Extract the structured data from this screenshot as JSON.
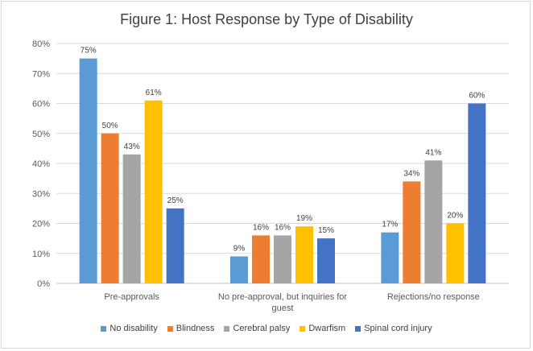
{
  "chart_data": {
    "type": "bar",
    "title": "Figure 1:  Host Response by Type of Disability",
    "categories": [
      [
        "Pre-approvals"
      ],
      [
        "No pre-approval, but inquiries for",
        "guest"
      ],
      [
        "Rejections/no response"
      ]
    ],
    "series": [
      {
        "name": "No disability",
        "color": "#5b9bd5",
        "values": [
          75,
          9,
          17
        ],
        "labels": [
          "75%",
          "9%",
          "17%"
        ]
      },
      {
        "name": "Blindness",
        "color": "#ed7d31",
        "values": [
          50,
          16,
          34
        ],
        "labels": [
          "50%",
          "16%",
          "34%"
        ]
      },
      {
        "name": "Cerebral palsy",
        "color": "#a5a5a5",
        "values": [
          43,
          16,
          41
        ],
        "labels": [
          "43%",
          "16%",
          "41%"
        ]
      },
      {
        "name": "Dwarfism",
        "color": "#ffc000",
        "values": [
          61,
          19,
          20
        ],
        "labels": [
          "61%",
          "19%",
          "20%"
        ]
      },
      {
        "name": "Spinal cord injury",
        "color": "#4472c4",
        "values": [
          25,
          15,
          60
        ],
        "labels": [
          "25%",
          "15%",
          "60%"
        ]
      }
    ],
    "ylim": [
      0,
      80
    ],
    "yticks": [
      "0%",
      "10%",
      "20%",
      "30%",
      "40%",
      "50%",
      "60%",
      "70%",
      "80%"
    ],
    "grid": true,
    "legend_position": "bottom"
  }
}
